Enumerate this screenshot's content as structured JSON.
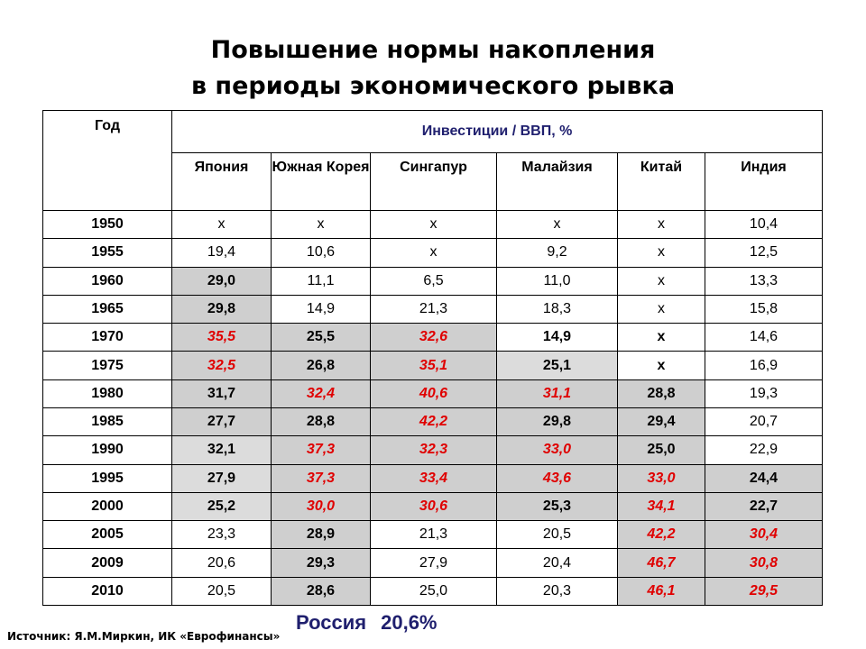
{
  "title": {
    "line1": "Повышение нормы накопления",
    "line2": "в периоды экономического рывка"
  },
  "table": {
    "year_header": "Год",
    "main_header": "Инвестиции / ВВП, %",
    "countries": [
      "Япония",
      "Южная Корея",
      "Сингапур",
      "Малайзия",
      "Китай",
      "Индия"
    ],
    "rows": [
      {
        "year": "1950",
        "values": [
          "x",
          "x",
          "x",
          "x",
          "x",
          "10,4"
        ]
      },
      {
        "year": "1955",
        "values": [
          "19,4",
          "10,6",
          "x",
          "9,2",
          "x",
          "12,5"
        ]
      },
      {
        "year": "1960",
        "values": [
          "29,0",
          "11,1",
          "6,5",
          "11,0",
          "x",
          "13,3"
        ]
      },
      {
        "year": "1965",
        "values": [
          "29,8",
          "14,9",
          "21,3",
          "18,3",
          "x",
          "15,8"
        ]
      },
      {
        "year": "1970",
        "values": [
          "35,5",
          "25,5",
          "32,6",
          "14,9",
          "x",
          "14,6"
        ]
      },
      {
        "year": "1975",
        "values": [
          "32,5",
          "26,8",
          "35,1",
          "25,1",
          "x",
          "16,9"
        ]
      },
      {
        "year": "1980",
        "values": [
          "31,7",
          "32,4",
          "40,6",
          "31,1",
          "28,8",
          "19,3"
        ]
      },
      {
        "year": "1985",
        "values": [
          "27,7",
          "28,8",
          "42,2",
          "29,8",
          "29,4",
          "20,7"
        ]
      },
      {
        "year": "1990",
        "values": [
          "32,1",
          "37,3",
          "32,3",
          "33,0",
          "25,0",
          "22,9"
        ]
      },
      {
        "year": "1995",
        "values": [
          "27,9",
          "37,3",
          "33,4",
          "43,6",
          "33,0",
          "24,4"
        ]
      },
      {
        "year": "2000",
        "values": [
          "25,2",
          "30,0",
          "30,6",
          "25,3",
          "34,1",
          "22,7"
        ]
      },
      {
        "year": "2005",
        "values": [
          "23,3",
          "28,9",
          "21,3",
          "20,5",
          "42,2",
          "30,4"
        ]
      },
      {
        "year": "2009",
        "values": [
          "20,6",
          "29,3",
          "27,9",
          "20,4",
          "46,7",
          "30,8"
        ]
      },
      {
        "year": "2010",
        "values": [
          "20,5",
          "28,6",
          "25,0",
          "20,3",
          "46,1",
          "29,5"
        ]
      }
    ]
  },
  "russia": {
    "label": "Россия",
    "value": "20,6%"
  },
  "source": "Источник: Я.М.Миркин, ИК «Еврофинансы»",
  "colors": {
    "highlight_red": "#e00000",
    "shade_gray": "#cfcfcf",
    "shade_light": "#dcdcdc",
    "header_blue": "#1f1f6e"
  }
}
